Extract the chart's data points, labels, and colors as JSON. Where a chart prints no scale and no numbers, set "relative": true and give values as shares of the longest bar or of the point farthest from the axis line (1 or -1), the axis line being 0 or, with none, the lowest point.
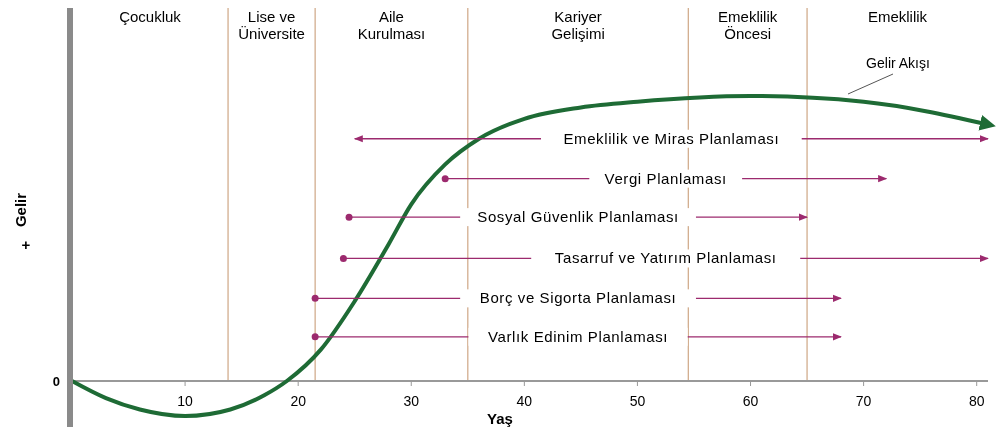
{
  "chart_data": {
    "type": "line",
    "relative": true,
    "xlabel": "Yaş",
    "ylabel": "Gelir",
    "xlim": [
      0,
      81
    ],
    "xticks": [
      10,
      20,
      30,
      40,
      50,
      60,
      70,
      80
    ],
    "legend": false,
    "grid": false,
    "annotations": [
      "0",
      "+",
      "Çocukluk",
      "Lise ve Üniversite",
      "Aile Kurulması",
      "Kariyer Gelişimi",
      "Emeklilik Öncesi",
      "Emeklilik"
    ],
    "ref_lines": [
      {
        "axis": "x",
        "value": 13.8,
        "color": "#d2ad8e"
      },
      {
        "axis": "x",
        "value": 21.5,
        "color": "#d2ad8e"
      },
      {
        "axis": "x",
        "value": 35,
        "color": "#d2ad8e"
      },
      {
        "axis": "x",
        "value": 54.5,
        "color": "#d2ad8e"
      },
      {
        "axis": "x",
        "value": 65,
        "color": "#d2ad8e"
      }
    ],
    "series": [
      {
        "name": "Gelir Akışı",
        "color": "#1e6b35",
        "x": [
          0,
          3,
          6,
          10,
          14,
          17,
          19,
          22,
          25,
          28,
          30,
          33,
          36,
          40,
          45,
          50,
          60,
          70,
          81
        ],
        "values": [
          0,
          -0.06,
          -0.1,
          -0.123,
          -0.1,
          -0.05,
          0,
          0.11,
          0.28,
          0.48,
          0.62,
          0.76,
          0.85,
          0.92,
          0.96,
          0.98,
          1,
          0.98,
          0.9
        ]
      },
      {
        "name": "Emeklilik ve Miras Planlaması",
        "color": "#9c2a6e",
        "marker": "none",
        "x": [
          25,
          81
        ],
        "values": [
          0.85,
          0.85
        ]
      },
      {
        "name": "Vergi Planlaması",
        "color": "#9c2a6e",
        "marker": "circle",
        "x": [
          33,
          72
        ],
        "values": [
          0.71,
          0.71
        ]
      },
      {
        "name": "Sosyal Güvenlik Planlaması",
        "color": "#9c2a6e",
        "marker": "circle",
        "x": [
          24.5,
          65
        ],
        "values": [
          0.575,
          0.575
        ]
      },
      {
        "name": "Tasarruf ve Yatırım Planlaması",
        "color": "#9c2a6e",
        "marker": "circle",
        "x": [
          24,
          81
        ],
        "values": [
          0.43,
          0.43
        ]
      },
      {
        "name": "Borç ve Sigorta Planlaması",
        "color": "#9c2a6e",
        "marker": "circle",
        "x": [
          21.5,
          68
        ],
        "values": [
          0.29,
          0.29
        ]
      },
      {
        "name": "Varlık Edinim Planlaması",
        "color": "#9c2a6e",
        "marker": "circle",
        "x": [
          21.5,
          68
        ],
        "values": [
          0.155,
          0.155
        ]
      }
    ]
  }
}
